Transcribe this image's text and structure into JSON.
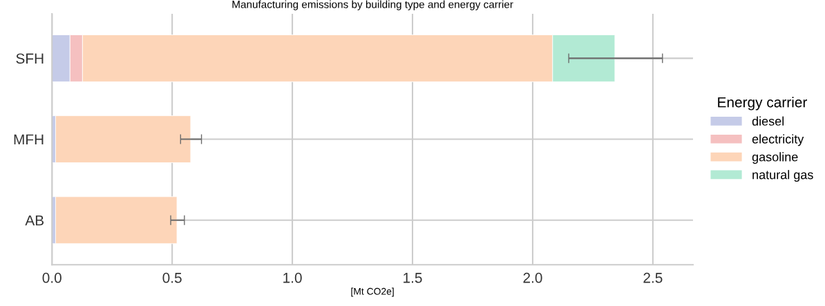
{
  "chart_data": {
    "type": "bar",
    "orientation": "horizontal",
    "stacked": true,
    "title": "Manufacturing emissions by building type and energy carrier",
    "xlabel": "[Mt CO2e]",
    "legend_title": "Energy carrier",
    "legend": "right",
    "grid": true,
    "categories": [
      "SFH",
      "MFH",
      "AB"
    ],
    "xlim": [
      0,
      2.667
    ],
    "xticks": [
      {
        "value": 0,
        "label": "0.0"
      },
      0.5,
      {
        "value": 1,
        "label": "1.0"
      },
      1.5,
      {
        "value": 2,
        "label": "2.0"
      },
      2.5
    ],
    "series": [
      {
        "name": "diesel",
        "color": "#c5cbe8",
        "values": [
          0.075,
          0.015,
          0.015
        ]
      },
      {
        "name": "electricity",
        "color": "#f5c0c0",
        "values": [
          0.052,
          null,
          null
        ]
      },
      {
        "name": "gasoline",
        "color": "#fdd5b8",
        "values": [
          1.956,
          0.562,
          0.505
        ],
        "errors": [
          null,
          [
            0.535,
            0.622
          ],
          [
            0.494,
            0.551
          ]
        ]
      },
      {
        "name": "natural gas",
        "color": "#b2ead4",
        "values": [
          0.259,
          null,
          null
        ],
        "errors": [
          [
            2.15,
            2.54
          ],
          null,
          null
        ]
      }
    ]
  }
}
